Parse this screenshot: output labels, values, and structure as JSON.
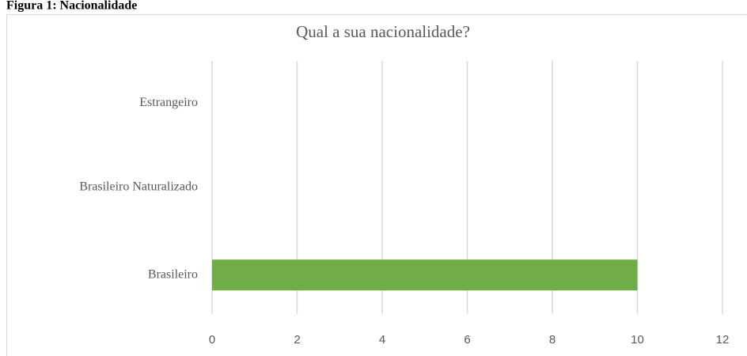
{
  "caption": "Figura 1: Nacionalidade",
  "chart_data": {
    "type": "bar",
    "orientation": "horizontal",
    "title": "Qual a sua nacionalidade?",
    "categories": [
      "Estrangeiro",
      "Brasileiro Naturalizado",
      "Brasileiro"
    ],
    "values": [
      0,
      0,
      10
    ],
    "color": "#70ad47",
    "xlim": [
      0,
      12
    ],
    "xticks": [
      0,
      2,
      4,
      6,
      8,
      10,
      12
    ],
    "grid": true
  }
}
